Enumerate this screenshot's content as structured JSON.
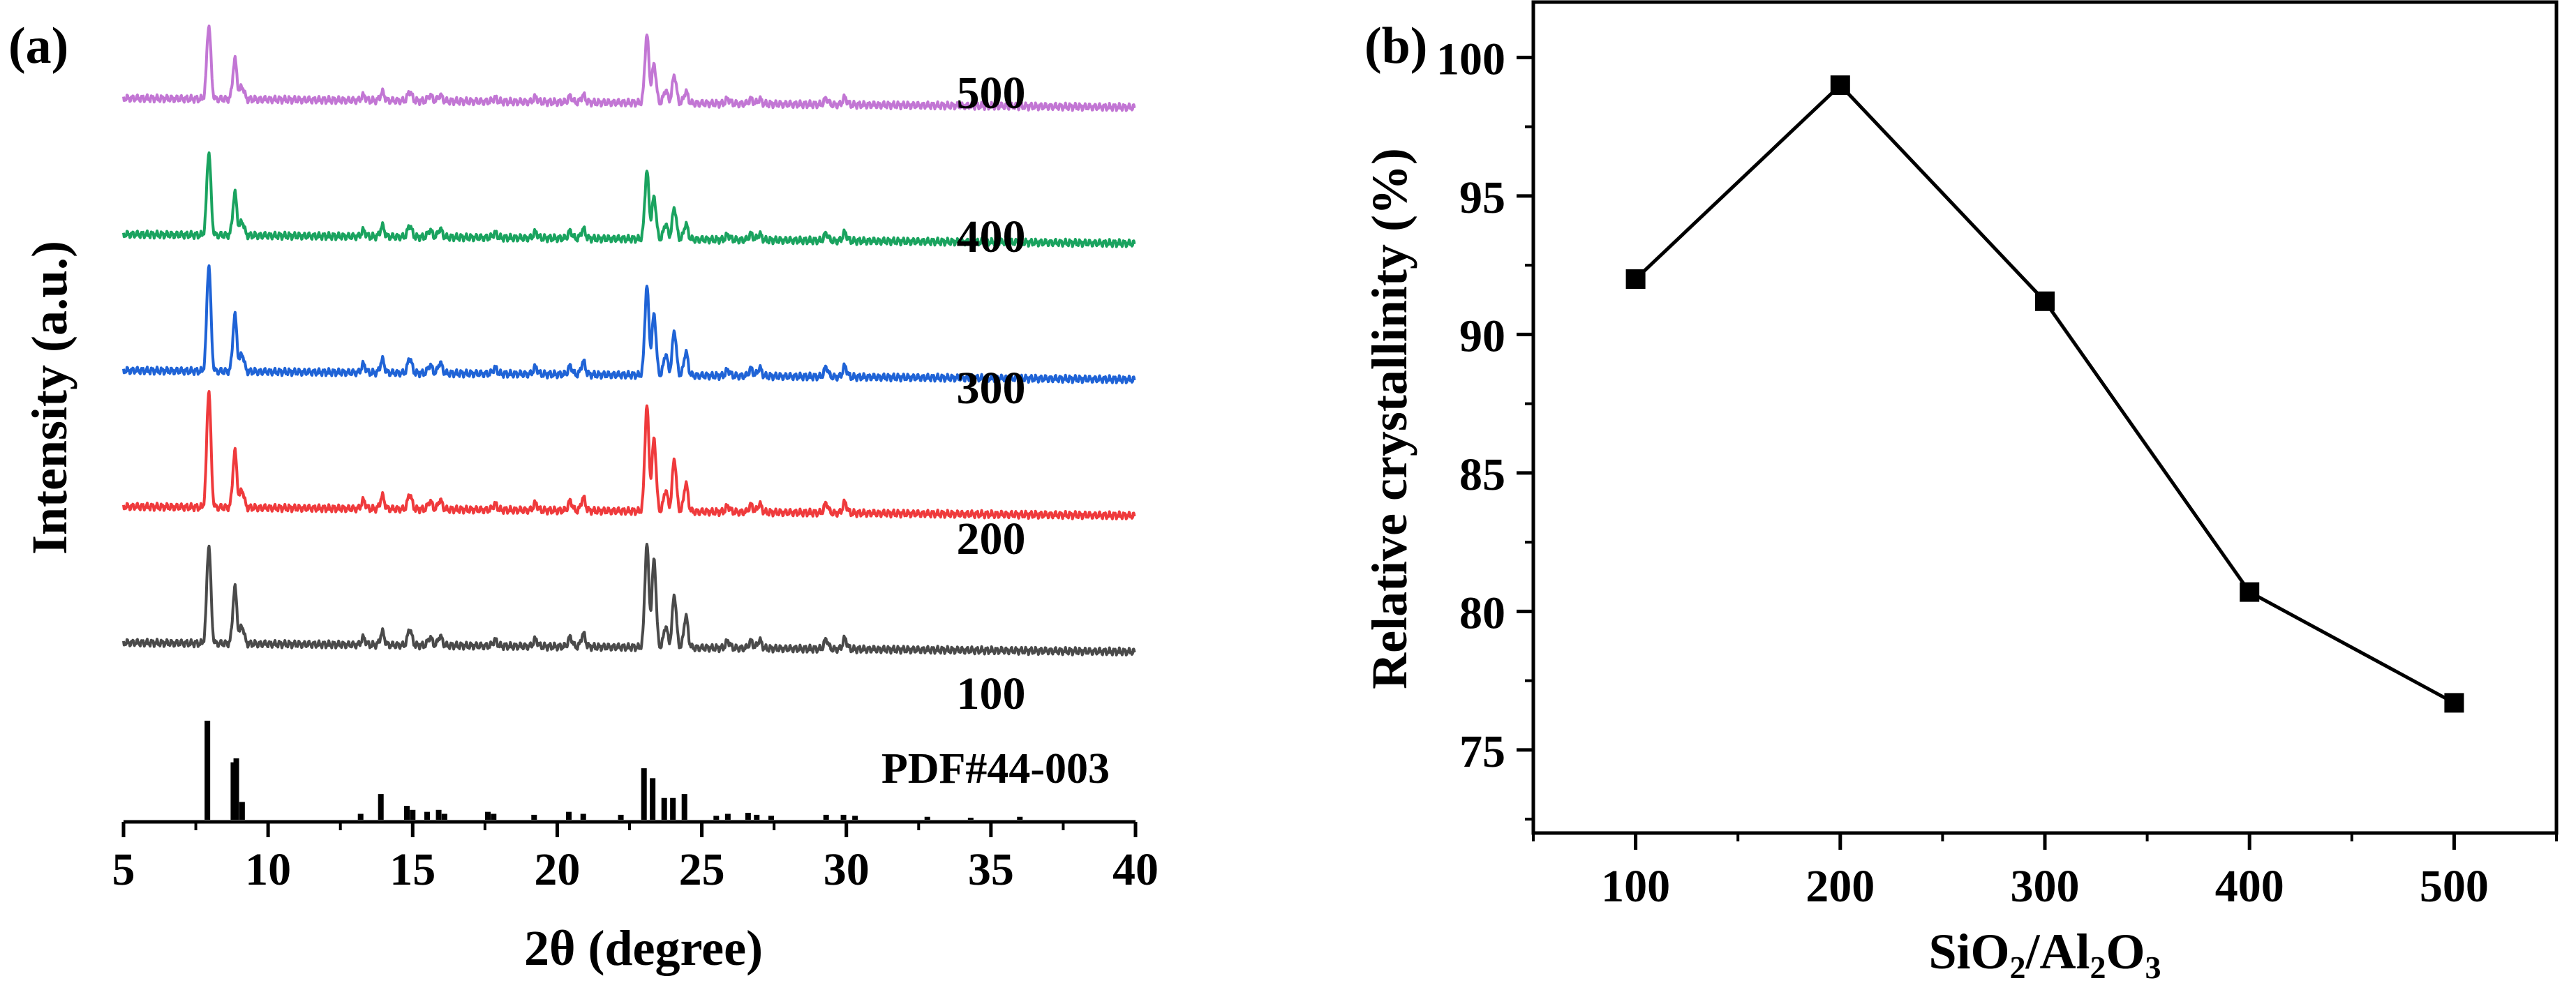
{
  "chart_data": [
    {
      "panel": "(a)",
      "type": "line",
      "title": "",
      "xlabel": "2θ (degree)",
      "ylabel": "Intensity (a.u.)",
      "xlim": [
        5,
        40
      ],
      "xticks": [
        5,
        10,
        15,
        20,
        25,
        30,
        35,
        40
      ],
      "offset_step": 0.18,
      "peak_positions": [
        7.95,
        8.85,
        9.1,
        13.3,
        13.95,
        14.9,
        15.6,
        15.95,
        17.85,
        19.25,
        20.45,
        20.9,
        23.1,
        23.35,
        23.75,
        24.05,
        24.45,
        25.9,
        26.7,
        27.0,
        29.3,
        29.95
      ],
      "reference": {
        "name": "PDF#44-003",
        "color": "#000000",
        "peaks": [
          [
            7.9,
            1.0
          ],
          [
            8.8,
            0.58
          ],
          [
            8.9,
            0.62
          ],
          [
            9.1,
            0.18
          ],
          [
            13.2,
            0.06
          ],
          [
            13.9,
            0.26
          ],
          [
            14.8,
            0.14
          ],
          [
            15.0,
            0.1
          ],
          [
            15.5,
            0.08
          ],
          [
            15.9,
            0.1
          ],
          [
            16.1,
            0.06
          ],
          [
            17.6,
            0.08
          ],
          [
            17.8,
            0.06
          ],
          [
            19.2,
            0.05
          ],
          [
            20.4,
            0.08
          ],
          [
            20.9,
            0.06
          ],
          [
            22.2,
            0.05
          ],
          [
            23.0,
            0.52
          ],
          [
            23.3,
            0.42
          ],
          [
            23.7,
            0.22
          ],
          [
            24.0,
            0.22
          ],
          [
            24.4,
            0.26
          ],
          [
            25.5,
            0.04
          ],
          [
            25.9,
            0.06
          ],
          [
            26.6,
            0.07
          ],
          [
            26.9,
            0.05
          ],
          [
            27.4,
            0.04
          ],
          [
            29.3,
            0.05
          ],
          [
            29.9,
            0.05
          ],
          [
            30.3,
            0.04
          ],
          [
            32.8,
            0.03
          ],
          [
            34.3,
            0.02
          ],
          [
            36.0,
            0.03
          ]
        ]
      },
      "series": [
        {
          "name": "100",
          "color": "#4a4a4a",
          "rel_intensity": [
            0.84,
            0.48,
            0.15,
            0.06,
            0.11,
            0.14,
            0.07,
            0.08,
            0.05,
            0.06,
            0.08,
            0.11,
            0.88,
            0.75,
            0.18,
            0.45,
            0.27,
            0.06,
            0.06,
            0.07,
            0.08,
            0.09
          ]
        },
        {
          "name": "200",
          "color": "#ef3a3c",
          "rel_intensity": [
            1.0,
            0.48,
            0.15,
            0.07,
            0.11,
            0.13,
            0.07,
            0.08,
            0.05,
            0.06,
            0.08,
            0.11,
            0.9,
            0.62,
            0.18,
            0.45,
            0.24,
            0.05,
            0.06,
            0.07,
            0.08,
            0.09
          ]
        },
        {
          "name": "300",
          "color": "#1f63d6",
          "rel_intensity": [
            0.91,
            0.48,
            0.15,
            0.07,
            0.11,
            0.13,
            0.07,
            0.09,
            0.05,
            0.06,
            0.07,
            0.11,
            0.76,
            0.52,
            0.18,
            0.38,
            0.2,
            0.05,
            0.06,
            0.07,
            0.08,
            0.09
          ]
        },
        {
          "name": "400",
          "color": "#1aa35f",
          "rel_intensity": [
            0.71,
            0.36,
            0.12,
            0.05,
            0.09,
            0.1,
            0.06,
            0.07,
            0.04,
            0.05,
            0.06,
            0.08,
            0.58,
            0.36,
            0.13,
            0.27,
            0.13,
            0.04,
            0.05,
            0.05,
            0.06,
            0.07
          ]
        },
        {
          "name": "500",
          "color": "#c276d4",
          "rel_intensity": [
            0.63,
            0.34,
            0.11,
            0.04,
            0.07,
            0.08,
            0.05,
            0.05,
            0.03,
            0.04,
            0.05,
            0.06,
            0.58,
            0.33,
            0.11,
            0.24,
            0.1,
            0.04,
            0.04,
            0.04,
            0.05,
            0.06
          ]
        }
      ]
    },
    {
      "panel": "(b)",
      "type": "line",
      "title": "",
      "xlabel_parts": [
        [
          "SiO",
          0
        ],
        [
          "2",
          1
        ],
        [
          "/Al",
          0
        ],
        [
          "2",
          1
        ],
        [
          "O",
          0
        ],
        [
          "3",
          1
        ]
      ],
      "ylabel": "Relative crystallinity (%)",
      "x": [
        100,
        200,
        300,
        400,
        500
      ],
      "y": [
        92,
        99,
        91.2,
        80.7,
        76.7
      ],
      "xlim": [
        50,
        550
      ],
      "ylim": [
        72,
        102
      ],
      "xticks": [
        100,
        200,
        300,
        400,
        500
      ],
      "yticks": [
        75,
        80,
        85,
        90,
        95,
        100
      ],
      "color": "#000000",
      "marker": "square"
    }
  ]
}
